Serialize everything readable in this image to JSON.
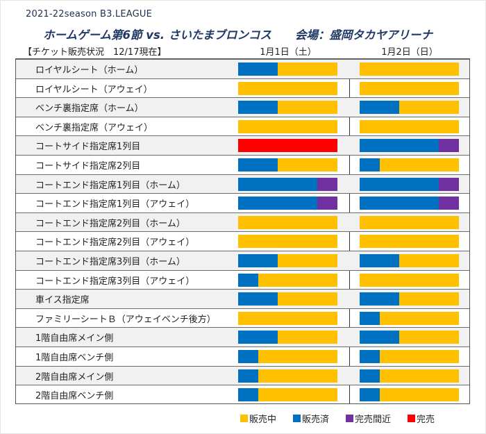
{
  "header": {
    "season": "2021-22season B3.LEAGUE",
    "title": "ホームゲーム第6節 vs. さいたまブロンコス",
    "venue": "会場：盛岡タカヤアリーナ",
    "status_label": "【チケット販売状況　12/17現在】"
  },
  "colors": {
    "on_sale": "#ffc000",
    "sold": "#0070c0",
    "almost_sold_out": "#7030a0",
    "sold_out": "#ff0000"
  },
  "chart_data": {
    "type": "bar",
    "orientation": "horizontal-stacked",
    "title": "ホームゲーム第6節 vs. さいたまブロンコス　会場：盛岡タカヤアリーナ",
    "subtitle": "【チケット販売状況　12/17現在】",
    "xlabel": "",
    "ylabel": "",
    "grid": false,
    "legend_position": "bottom-right",
    "legend": [
      {
        "key": "on_sale",
        "label": "販売中"
      },
      {
        "key": "sold",
        "label": "販売済"
      },
      {
        "key": "almost_sold_out",
        "label": "完売間近"
      },
      {
        "key": "sold_out",
        "label": "完売"
      }
    ],
    "days": [
      "1月1日（土）",
      "1月2日（日）"
    ],
    "categories": [
      "ロイヤルシート（ホーム）",
      "ロイヤルシート（アウェイ）",
      "ベンチ裏指定席（ホーム）",
      "ベンチ裏指定席（アウェイ）",
      "コートサイド指定席1列目",
      "コートサイド指定席2列目",
      "コートエンド指定席1列目（ホーム）",
      "コートエンド指定席1列目（アウェイ）",
      "コートエンド指定席2列目（ホーム）",
      "コートエンド指定席2列目（アウェイ）",
      "コートエンド指定席3列目（ホーム）",
      "コートエンド指定席3列目（アウェイ）",
      "車イス指定席",
      "ファミリーシートＢ（アウェイベンチ後方）",
      "1階自由席メイン側",
      "1階自由席ベンチ側",
      "2階自由席メイン側",
      "2階自由席ベンチ側"
    ],
    "series": [
      {
        "day": "1月1日（土）",
        "rows": [
          {
            "sold": 40,
            "almost_sold_out": 0,
            "sold_out": 0,
            "on_sale": 60
          },
          {
            "sold": 0,
            "almost_sold_out": 0,
            "sold_out": 0,
            "on_sale": 100
          },
          {
            "sold": 40,
            "almost_sold_out": 0,
            "sold_out": 0,
            "on_sale": 60
          },
          {
            "sold": 0,
            "almost_sold_out": 0,
            "sold_out": 0,
            "on_sale": 100
          },
          {
            "sold": 0,
            "almost_sold_out": 0,
            "sold_out": 100,
            "on_sale": 0
          },
          {
            "sold": 40,
            "almost_sold_out": 0,
            "sold_out": 0,
            "on_sale": 60
          },
          {
            "sold": 80,
            "almost_sold_out": 20,
            "sold_out": 0,
            "on_sale": 0
          },
          {
            "sold": 80,
            "almost_sold_out": 20,
            "sold_out": 0,
            "on_sale": 0
          },
          {
            "sold": 0,
            "almost_sold_out": 0,
            "sold_out": 0,
            "on_sale": 100
          },
          {
            "sold": 0,
            "almost_sold_out": 0,
            "sold_out": 0,
            "on_sale": 100
          },
          {
            "sold": 40,
            "almost_sold_out": 0,
            "sold_out": 0,
            "on_sale": 60
          },
          {
            "sold": 20,
            "almost_sold_out": 0,
            "sold_out": 0,
            "on_sale": 80
          },
          {
            "sold": 40,
            "almost_sold_out": 0,
            "sold_out": 0,
            "on_sale": 60
          },
          {
            "sold": 0,
            "almost_sold_out": 0,
            "sold_out": 0,
            "on_sale": 100
          },
          {
            "sold": 40,
            "almost_sold_out": 0,
            "sold_out": 0,
            "on_sale": 60
          },
          {
            "sold": 20,
            "almost_sold_out": 0,
            "sold_out": 0,
            "on_sale": 80
          },
          {
            "sold": 20,
            "almost_sold_out": 0,
            "sold_out": 0,
            "on_sale": 80
          },
          {
            "sold": 20,
            "almost_sold_out": 0,
            "sold_out": 0,
            "on_sale": 80
          }
        ]
      },
      {
        "day": "1月2日（日）",
        "rows": [
          {
            "sold": 0,
            "almost_sold_out": 0,
            "sold_out": 0,
            "on_sale": 100
          },
          {
            "sold": 0,
            "almost_sold_out": 0,
            "sold_out": 0,
            "on_sale": 100
          },
          {
            "sold": 40,
            "almost_sold_out": 0,
            "sold_out": 0,
            "on_sale": 60
          },
          {
            "sold": 0,
            "almost_sold_out": 0,
            "sold_out": 0,
            "on_sale": 100
          },
          {
            "sold": 80,
            "almost_sold_out": 20,
            "sold_out": 0,
            "on_sale": 0
          },
          {
            "sold": 20,
            "almost_sold_out": 0,
            "sold_out": 0,
            "on_sale": 80
          },
          {
            "sold": 80,
            "almost_sold_out": 20,
            "sold_out": 0,
            "on_sale": 0
          },
          {
            "sold": 80,
            "almost_sold_out": 20,
            "sold_out": 0,
            "on_sale": 0
          },
          {
            "sold": 0,
            "almost_sold_out": 0,
            "sold_out": 0,
            "on_sale": 100
          },
          {
            "sold": 0,
            "almost_sold_out": 0,
            "sold_out": 0,
            "on_sale": 100
          },
          {
            "sold": 40,
            "almost_sold_out": 0,
            "sold_out": 0,
            "on_sale": 60
          },
          {
            "sold": 0,
            "almost_sold_out": 0,
            "sold_out": 0,
            "on_sale": 100
          },
          {
            "sold": 40,
            "almost_sold_out": 0,
            "sold_out": 0,
            "on_sale": 60
          },
          {
            "sold": 20,
            "almost_sold_out": 0,
            "sold_out": 0,
            "on_sale": 80
          },
          {
            "sold": 40,
            "almost_sold_out": 0,
            "sold_out": 0,
            "on_sale": 60
          },
          {
            "sold": 20,
            "almost_sold_out": 0,
            "sold_out": 0,
            "on_sale": 80
          },
          {
            "sold": 20,
            "almost_sold_out": 0,
            "sold_out": 0,
            "on_sale": 80
          },
          {
            "sold": 20,
            "almost_sold_out": 0,
            "sold_out": 0,
            "on_sale": 80
          }
        ]
      }
    ],
    "xlim": [
      0,
      100
    ]
  }
}
